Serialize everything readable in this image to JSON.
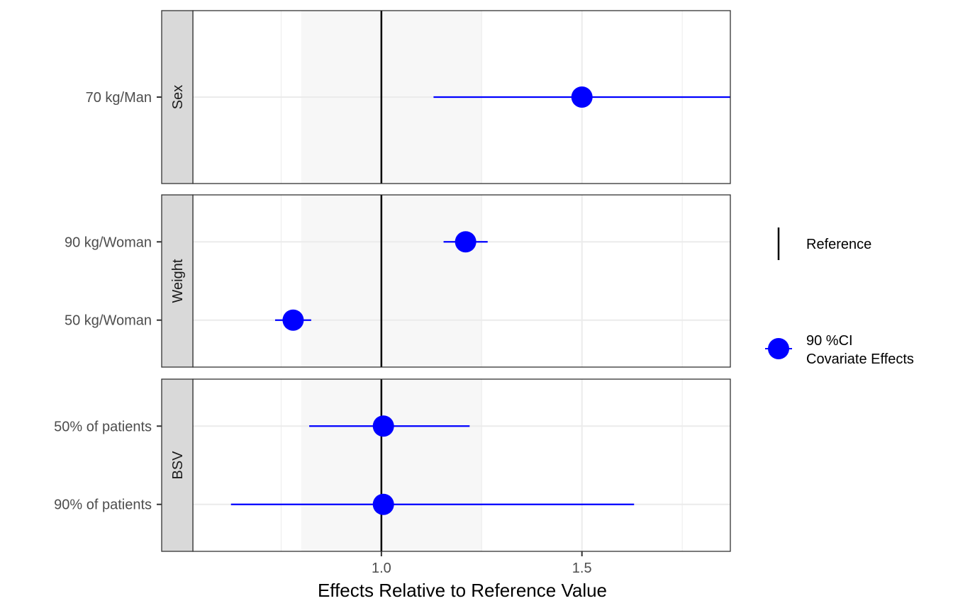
{
  "chart_data": {
    "type": "scatter",
    "subtype": "forest-plot",
    "xlabel": "Effects Relative to Reference Value",
    "xlim": [
      0.53,
      1.87
    ],
    "xticks": [
      1.0,
      1.5
    ],
    "xtick_labels": [
      "1.0",
      "1.5"
    ],
    "reference_value": 1.0,
    "reference_band": [
      0.8,
      1.25
    ],
    "grid": true,
    "legend_position": "right",
    "colors": {
      "point": "#0000ff",
      "reference": "#000000",
      "band": "#f7f7f7",
      "strip": "#d9d9d9",
      "grid": "#ebebeb"
    },
    "panels": [
      {
        "strip": "Sex",
        "rows": [
          {
            "label": "70 kg/Man",
            "value": 1.5,
            "lower": 1.13,
            "upper": 1.87
          }
        ]
      },
      {
        "strip": "Weight",
        "rows": [
          {
            "label": "90 kg/Woman",
            "value": 1.21,
            "lower": 1.155,
            "upper": 1.265
          },
          {
            "label": "50 kg/Woman",
            "value": 0.78,
            "lower": 0.735,
            "upper": 0.825
          }
        ]
      },
      {
        "strip": "BSV",
        "rows": [
          {
            "label": "50% of patients",
            "value": 1.005,
            "lower": 0.82,
            "upper": 1.22
          },
          {
            "label": "90% of patients",
            "value": 1.005,
            "lower": 0.625,
            "upper": 1.63
          }
        ]
      }
    ],
    "legend": {
      "reference_label": "Reference",
      "effects_label_lines": [
        "90 %CI",
        "Covariate Effects"
      ]
    }
  }
}
